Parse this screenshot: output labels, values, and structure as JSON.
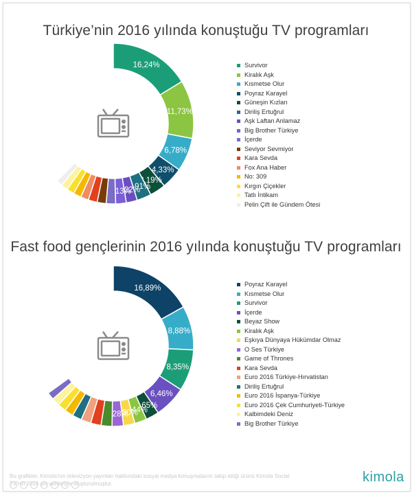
{
  "chart_data": [
    {
      "type": "donut",
      "title": "Türkiye’nin 2016 yılında konuştuğu TV programları",
      "center_icon": "tv-icon",
      "legend_position": "right",
      "categories": [
        "Survivor",
        "Kiralık Aşk",
        "Kısmetse Olur",
        "Poyraz Karayel",
        "Güneşin Kızları",
        "Diriliş Ertuğrul",
        "Aşk Laftan Anlamaz",
        "Big Brother Türkiye",
        "İçerde",
        "Seviyor Sevmiyor",
        "Kara Sevda",
        "Fox Ana Haber",
        "No: 309",
        "Kırgın Çiçekler",
        "Tatlı İntikam",
        "Pelin Çift ile Gündem Ötesi"
      ],
      "values": [
        16.24,
        11.73,
        6.78,
        4.33,
        3.19,
        2.91,
        2.22,
        2.13,
        1.9,
        1.8,
        1.8,
        1.6,
        1.6,
        1.5,
        1.4,
        1.2
      ],
      "labels": [
        "16,24%",
        "11,73%",
        "6,78%",
        "4,33%",
        "3,19%",
        "2,91%",
        "2,22%",
        "2,13%",
        "",
        "",
        "",
        "",
        "",
        "",
        "",
        ""
      ],
      "colors": [
        "#1b9e77",
        "#8cc541",
        "#37acc9",
        "#104e6b",
        "#0d4f3b",
        "#1f6f82",
        "#6a4fc1",
        "#7a5fd9",
        "#7b6dc4",
        "#7a3b0b",
        "#e2401e",
        "#ef8c61",
        "#f5b800",
        "#f8e02e",
        "#fdf3a0",
        "#eeeeee"
      ]
    },
    {
      "type": "donut",
      "title": "Fast food gençlerinin 2016 yılında konuştuğu TV programları",
      "center_icon": "tv-icon",
      "legend_position": "right",
      "categories": [
        "Poyraz Karayel",
        "Kısmetse Olur",
        "Survivor",
        "İçerde",
        "Beyaz Show",
        "Kiralık Aşk",
        "Eşkıya Dünyaya Hükümdar Olmaz",
        "O Ses Türkiye",
        "Game of Thrones",
        "Kara Sevda",
        "Euro 2016 Türkiye-Hırvatistan",
        "Diriliş Ertuğrul",
        "Euro 2016 İspanya-Türkiye",
        "Euro 2016 Çek Cumhuriyeti-Türkiye",
        "Kalbimdeki Deniz",
        "Big Brother Türkiye"
      ],
      "values": [
        16.89,
        8.88,
        8.35,
        6.46,
        2.65,
        2.44,
        2.3,
        2.28,
        2.2,
        2.1,
        2.0,
        1.9,
        1.8,
        1.7,
        1.6,
        1.5
      ],
      "labels": [
        "16,89%",
        "8,88%",
        "8,35%",
        "6,46%",
        "2,65%",
        "2,44%",
        "2,30%",
        "2,28%",
        "",
        "",
        "",
        "",
        "",
        "",
        "",
        ""
      ],
      "colors": [
        "#0e4266",
        "#37acc9",
        "#1b9e77",
        "#6a50c0",
        "#0d4f3b",
        "#8cc541",
        "#f7d84a",
        "#9a66d6",
        "#4a8b2c",
        "#e2401e",
        "#efa07e",
        "#1f6f82",
        "#f5b800",
        "#f8e02e",
        "#fdf3a0",
        "#7b6dc4"
      ]
    }
  ],
  "footer": {
    "text": "Bu grafikler, Kimola'nın televizyon yayınları hakkındaki sosyal medya konuşmalarını takip ettiği ürünü Kimola Social TV'nin 2016 yılı verileriyle oluşturulmuştur."
  },
  "brand": {
    "name": "kimola"
  }
}
